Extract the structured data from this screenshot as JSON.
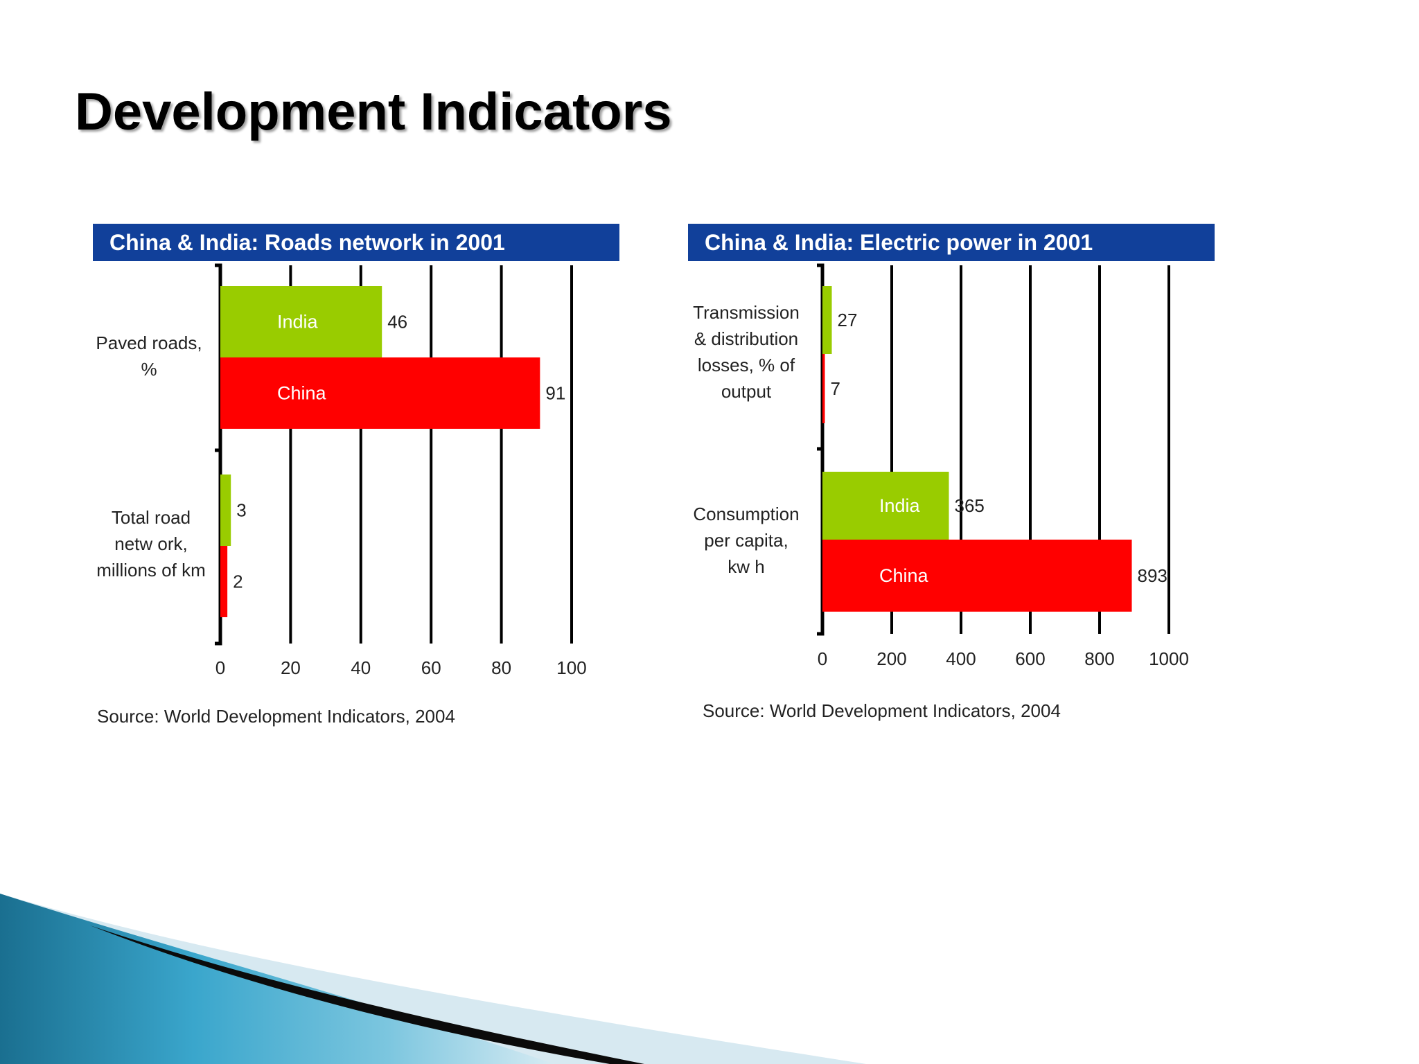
{
  "slide": {
    "title": "Development Indicators"
  },
  "colors": {
    "india": "#99cc00",
    "china": "#ff0000",
    "header": "#11409a"
  },
  "chart_data": [
    {
      "type": "bar",
      "orientation": "horizontal",
      "title": "China & India: Roads network in 2001",
      "categories": [
        {
          "id": "paved",
          "lines": [
            "Paved roads,",
            "%"
          ]
        },
        {
          "id": "total",
          "lines": [
            "Total road",
            "netw ork,",
            "millions of km"
          ]
        }
      ],
      "series": [
        {
          "name": "India",
          "values": [
            46,
            3
          ],
          "color": "#99cc00"
        },
        {
          "name": "China",
          "values": [
            91,
            2
          ],
          "color": "#ff0000"
        }
      ],
      "bar_labels": [
        [
          "India",
          "China"
        ],
        [
          "",
          ""
        ]
      ],
      "xlim": [
        0,
        100
      ],
      "xticks": [
        "0",
        "20",
        "40",
        "60",
        "80",
        "100"
      ],
      "source": "Source: World Development Indicators, 2004"
    },
    {
      "type": "bar",
      "orientation": "horizontal",
      "title": "China & India: Electric power in 2001",
      "categories": [
        {
          "id": "losses",
          "lines": [
            "Transmission",
            "& distribution",
            "losses, % of",
            "output"
          ]
        },
        {
          "id": "consumption",
          "lines": [
            "Consumption",
            "per capita,",
            "kw h"
          ]
        }
      ],
      "series": [
        {
          "name": "India",
          "values": [
            27,
            365
          ],
          "color": "#99cc00"
        },
        {
          "name": "China",
          "values": [
            7,
            893
          ],
          "color": "#ff0000"
        }
      ],
      "bar_labels": [
        [
          "",
          ""
        ],
        [
          "India",
          "China"
        ]
      ],
      "xlim": [
        0,
        1000
      ],
      "xticks": [
        "0",
        "200",
        "400",
        "600",
        "800",
        "1000"
      ],
      "source": "Source: World Development Indicators, 2004"
    }
  ]
}
